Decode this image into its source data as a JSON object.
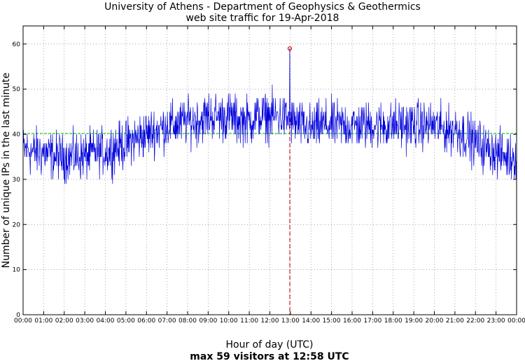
{
  "chart_data": {
    "type": "line",
    "title": "University of Athens - Department of Geophysics & Geothermics",
    "subtitle": "web site traffic for 19-Apr-2018",
    "xlabel": "Hour of day (UTC)",
    "ylabel": "Number of unique IPs in the last minute",
    "footer": "max 59 visitors at 12:58 UTC",
    "x_ticks": [
      "00:00",
      "01:00",
      "02:00",
      "03:00",
      "04:00",
      "05:00",
      "06:00",
      "07:00",
      "08:00",
      "09:00",
      "10:00",
      "11:00",
      "12:00",
      "13:00",
      "14:00",
      "15:00",
      "16:00",
      "17:00",
      "18:00",
      "19:00",
      "20:00",
      "21:00",
      "22:00",
      "23:00",
      "00:00"
    ],
    "y_ticks": [
      0,
      10,
      20,
      30,
      40,
      50,
      60
    ],
    "xlim": [
      0,
      24
    ],
    "ylim": [
      0,
      64
    ],
    "grid": true,
    "series": [
      {
        "color": "#0000dd",
        "x": [
          0,
          0.5,
          1,
          1.5,
          2,
          2.5,
          3,
          3.5,
          4,
          4.5,
          5,
          5.5,
          6,
          6.5,
          7,
          7.5,
          8,
          8.5,
          9,
          9.5,
          10,
          10.5,
          11,
          11.5,
          12,
          12.5,
          13,
          13.5,
          14,
          14.5,
          15,
          15.5,
          16,
          16.5,
          17,
          17.5,
          18,
          18.5,
          19,
          19.5,
          20,
          20.5,
          21,
          21.5,
          22,
          22.5,
          23,
          23.5,
          24
        ],
        "y": [
          37,
          36,
          36,
          35,
          35,
          35,
          35,
          36,
          36,
          37,
          38,
          39,
          40,
          41,
          42,
          42,
          43,
          43,
          44,
          44,
          44,
          43,
          43,
          44,
          44,
          44,
          43,
          42,
          41,
          42,
          42,
          42,
          42,
          42,
          42,
          42,
          42,
          42,
          42,
          42,
          42,
          41,
          41,
          40,
          38,
          37,
          36,
          35,
          35
        ]
      }
    ],
    "reference_lines": [
      {
        "axis": "y",
        "value": 40.2,
        "color": "#00cc00",
        "style": "dashed"
      },
      {
        "axis": "x",
        "value": 12.97,
        "color": "#cc0000",
        "style": "dashed"
      }
    ],
    "peak_marker": {
      "x": 12.97,
      "y": 59,
      "color": "#cc0000"
    }
  }
}
